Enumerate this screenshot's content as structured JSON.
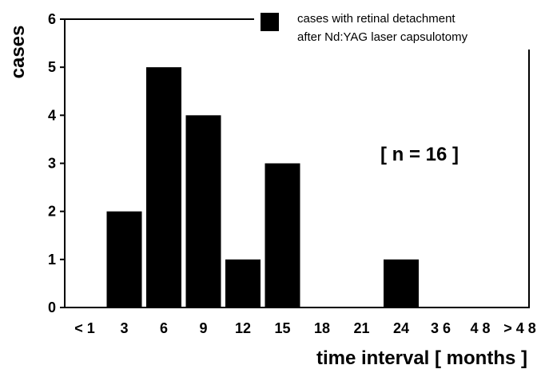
{
  "chart_data": {
    "type": "bar",
    "categories": [
      "< 1",
      "3",
      "6",
      "9",
      "12",
      "15",
      "18",
      "21",
      "24",
      "3 6",
      "4 8",
      "> 4 8"
    ],
    "values": [
      0,
      2,
      5,
      4,
      1,
      3,
      0,
      0,
      1,
      0,
      0,
      0
    ],
    "series": [
      {
        "name": "cases with retinal detachment after Nd:YAG laser capsulotomy",
        "values": [
          0,
          2,
          5,
          4,
          1,
          3,
          0,
          0,
          1,
          0,
          0,
          0
        ]
      }
    ],
    "xlabel": "time interval [ months ]",
    "ylabel": "cases",
    "ylim": [
      0,
      6
    ],
    "yticks": [
      "0",
      "1",
      "2",
      "3",
      "4",
      "5",
      "6"
    ],
    "legend": {
      "line1": "cases with retinal detachment",
      "line2": "after Nd:YAG laser capsulotomy",
      "position": "top-right"
    },
    "annotation": "[ n = 16 ]",
    "grid": false,
    "bar_color": "#000000"
  }
}
